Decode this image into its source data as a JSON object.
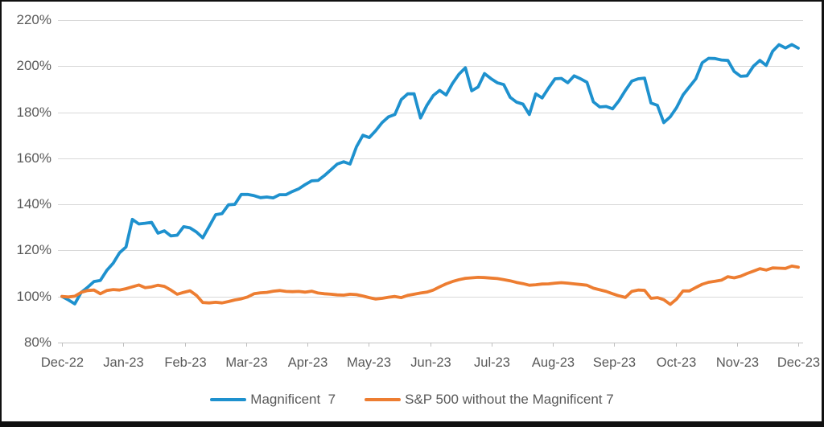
{
  "chart_data": {
    "type": "line",
    "title": "",
    "xlabel": "",
    "ylabel": "",
    "grid": "horizontal",
    "legend_position": "bottom",
    "y_axis": {
      "min": 80,
      "max": 220,
      "step": 20,
      "unit": "%"
    },
    "y_tick_labels": [
      "220%",
      "200%",
      "180%",
      "160%",
      "140%",
      "120%",
      "100%",
      "80%"
    ],
    "x_tick_labels": [
      "Dec-22",
      "Jan-23",
      "Feb-23",
      "Mar-23",
      "Apr-23",
      "May-23",
      "Jun-23",
      "Jul-23",
      "Aug-23",
      "Sep-23",
      "Oct-23",
      "Nov-23",
      "Dec-23"
    ],
    "colors": {
      "gridline": "#D9D9D9",
      "axis_line": "#C3C3C3",
      "tick_mark": "#BFBFBF",
      "axis_text": "#595959",
      "background": "#FFFFFF",
      "border": "#101010"
    },
    "series": [
      {
        "name": "Magnificent  7",
        "color": "#1E91CE",
        "values": [
          100,
          98.5,
          96.8,
          101.8,
          104,
          106.5,
          107,
          111.3,
          114.5,
          119,
          121.5,
          133.5,
          131.5,
          131.8,
          132.2,
          127.5,
          128.5,
          126.3,
          126.6,
          130.3,
          129.8,
          128,
          125.5,
          130.5,
          135.5,
          136,
          139.8,
          140,
          144.3,
          144.3,
          143.8,
          142.9,
          143.2,
          142.8,
          144.2,
          144.2,
          145.6,
          146.8,
          148.6,
          150.2,
          150.4,
          152.5,
          155,
          157.5,
          158.5,
          157.5,
          165,
          170,
          169,
          172,
          175.5,
          178,
          179,
          185.5,
          188,
          188,
          177.5,
          183,
          187.3,
          189.5,
          187.5,
          192.5,
          196.5,
          199.3,
          189.3,
          191,
          196.8,
          194.6,
          192.8,
          192,
          186.5,
          184.4,
          183.5,
          179,
          188,
          186.2,
          190.5,
          194.5,
          194.7,
          192.8,
          195.8,
          194.5,
          193,
          184.5,
          182.3,
          182.5,
          181.5,
          185,
          189.5,
          193.5,
          194.5,
          194.8,
          184,
          183,
          175.5,
          178,
          182,
          187.5,
          191,
          194.5,
          201.5,
          203.4,
          203.3,
          202.7,
          202.5,
          197.7,
          195.6,
          195.8,
          200,
          202.5,
          200.3,
          206.5,
          209.3,
          207.9,
          209.4,
          207.8
        ]
      },
      {
        "name": "S&P 500 without the Magnificent 7",
        "color": "#ED7D31",
        "values": [
          100,
          99.8,
          100.1,
          101.8,
          102.6,
          102.8,
          101.2,
          102.6,
          103,
          102.8,
          103.4,
          104.2,
          105,
          103.8,
          104.2,
          104.9,
          104.4,
          102.8,
          101,
          101.8,
          102.5,
          100.5,
          97.4,
          97.2,
          97.5,
          97.2,
          97.8,
          98.5,
          99,
          99.8,
          101.2,
          101.6,
          101.8,
          102.3,
          102.6,
          102.2,
          102.1,
          102.2,
          101.9,
          102.3,
          101.5,
          101.2,
          101,
          100.7,
          100.6,
          101,
          100.8,
          100.2,
          99.5,
          98.9,
          99.2,
          99.7,
          100,
          99.5,
          100.5,
          101,
          101.5,
          101.9,
          102.8,
          104.2,
          105.5,
          106.5,
          107.3,
          107.9,
          108.1,
          108.3,
          108.2,
          108,
          107.8,
          107.3,
          106.8,
          106.1,
          105.6,
          104.9,
          105.1,
          105.4,
          105.5,
          105.8,
          106,
          105.8,
          105.5,
          105.2,
          104.9,
          103.6,
          102.9,
          102.2,
          101.2,
          100.3,
          99.6,
          102.2,
          102.8,
          102.7,
          99.2,
          99.5,
          98.6,
          96.6,
          98.9,
          102.4,
          102.4,
          103.9,
          105.3,
          106.2,
          106.6,
          107.1,
          108.6,
          108.1,
          108.8,
          110,
          111,
          112.1,
          111.5,
          112.4,
          112.3,
          112.2,
          113.2,
          112.7
        ]
      }
    ]
  }
}
